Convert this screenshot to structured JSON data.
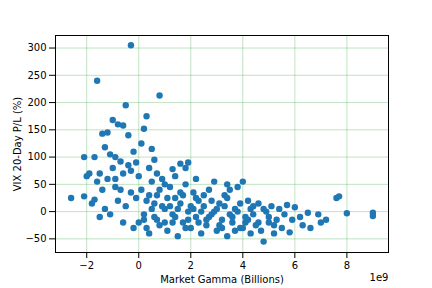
{
  "chart_data": {
    "type": "scatter",
    "x_label": "Market Gamma (Billions)",
    "y_label": "VIX 20-Day P/L (%)",
    "annotations": [
      "1e9"
    ],
    "color": "#1f77b4",
    "marker": "circle",
    "grid": true,
    "xlim": [
      -3.2,
      9.6
    ],
    "ylim": [
      -75,
      323
    ],
    "xticks": [
      -2,
      0,
      2,
      4,
      6,
      8
    ],
    "yticks": [
      -50,
      0,
      50,
      100,
      150,
      200,
      250,
      300
    ],
    "x": [
      -0.3,
      -1.6,
      0.8,
      -0.5,
      0.3,
      -1.0,
      -0.8,
      -0.6,
      -1.2,
      0.2,
      -0.4,
      -1.4,
      -2.1,
      -2.6,
      -2.1,
      -1.8,
      -1.7,
      -1.5,
      -1.3,
      -1.1,
      1.6,
      1.9,
      1.8,
      1.3,
      0.5,
      0.6,
      0.1,
      -0.2,
      -0.9,
      -0.7,
      -1.6,
      -1.4,
      -1.2,
      -1.0,
      -0.9,
      -0.6,
      -0.4,
      -0.1,
      0.0,
      0.4,
      -1.5,
      -1.3,
      -1.1,
      -0.8,
      -0.6,
      -0.5,
      -0.3,
      -0.2,
      0.1,
      0.2,
      0.3,
      0.4,
      0.5,
      0.6,
      0.7,
      0.8,
      0.9,
      1.0,
      1.1,
      1.2,
      1.3,
      1.4,
      1.5,
      1.6,
      1.7,
      1.8,
      1.9,
      2.0,
      2.1,
      2.2,
      2.3,
      2.4,
      2.5,
      2.6,
      2.7,
      2.8,
      2.9,
      3.0,
      3.1,
      3.2,
      3.3,
      3.4,
      3.5,
      3.6,
      3.7,
      3.8,
      3.9,
      4.0,
      4.1,
      4.2,
      4.3,
      4.4,
      4.5,
      4.6,
      4.7,
      4.8,
      4.9,
      5.0,
      5.1,
      5.2,
      5.3,
      5.4,
      5.5,
      5.6,
      5.8,
      6.0,
      6.3,
      6.6,
      6.9,
      7.0,
      7.2,
      7.6,
      7.7,
      8.0,
      9.0,
      9.0,
      6.2,
      5.9,
      6.5,
      5.7,
      0.5,
      0.7,
      0.9,
      1.1,
      1.3,
      1.5,
      1.7,
      1.9,
      2.1,
      2.3,
      2.5,
      2.7,
      2.9,
      3.1,
      3.3,
      3.5,
      3.7,
      3.9,
      4.1,
      4.3,
      0.2,
      0.4,
      0.6,
      0.8,
      1.0,
      1.2,
      1.4,
      1.6,
      1.8,
      2.0,
      2.2,
      2.4,
      2.6,
      2.8,
      3.0,
      3.2,
      3.4,
      3.6,
      3.8,
      4.0,
      4.2,
      4.4,
      4.6,
      4.8,
      5.0,
      5.2,
      0.0,
      -0.1,
      0.3,
      1.0,
      -0.7,
      -0.9,
      -1.9,
      -1.7,
      -2.0,
      -0.3,
      0.7,
      1.4,
      2.2,
      3.4
    ],
    "values": [
      305,
      240,
      213,
      195,
      175,
      168,
      160,
      158,
      145,
      152,
      140,
      143,
      100,
      25,
      28,
      15,
      22,
      70,
      118,
      105,
      88,
      90,
      80,
      78,
      115,
      95,
      125,
      110,
      100,
      92,
      55,
      40,
      60,
      80,
      45,
      70,
      85,
      90,
      65,
      80,
      -10,
      5,
      -5,
      20,
      -20,
      10,
      35,
      -30,
      40,
      -15,
      20,
      -40,
      55,
      -10,
      30,
      -25,
      60,
      5,
      -35,
      45,
      -5,
      25,
      -45,
      15,
      -20,
      50,
      0,
      -30,
      35,
      -10,
      20,
      -40,
      10,
      -25,
      40,
      -5,
      55,
      -35,
      15,
      -15,
      30,
      -45,
      40,
      -20,
      5,
      45,
      -30,
      55,
      -10,
      20,
      -40,
      10,
      -25,
      15,
      -35,
      -55,
      0,
      -20,
      10,
      -40,
      -15,
      5,
      -30,
      -5,
      -38,
      8,
      -25,
      -30,
      -5,
      -20,
      -15,
      25,
      28,
      -3,
      -2,
      -8,
      -10,
      -15,
      -2,
      12,
      5,
      -15,
      10,
      25,
      -20,
      5,
      30,
      -15,
      5,
      -20,
      30,
      -10,
      0,
      -25,
      10,
      -5,
      -35,
      15,
      -20,
      5,
      -5,
      30,
      15,
      40,
      -20,
      10,
      -10,
      35,
      -30,
      10,
      25,
      0,
      -15,
      20,
      5,
      -30,
      25,
      -10,
      0,
      -30,
      -15,
      -5,
      -20,
      5,
      -10,
      -25,
      -20,
      25,
      -30,
      50,
      40,
      60,
      70,
      100,
      65,
      75,
      70,
      65,
      60,
      50
    ]
  }
}
